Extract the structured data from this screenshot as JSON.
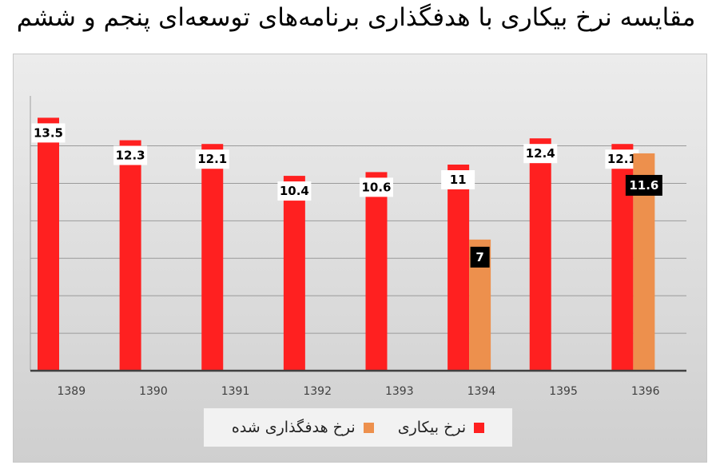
{
  "title": "مقایسه نرخ بیکاری با هدفگذاری برنامه‌های توسعه‌ای پنجم و ششم",
  "chart_data": {
    "type": "bar",
    "categories": [
      "1389",
      "1390",
      "1391",
      "1392",
      "1393",
      "1394",
      "1395",
      "1396"
    ],
    "series": [
      {
        "name": "نرخ بیکاری",
        "color": "#ff2020",
        "values": [
          13.5,
          12.3,
          12.1,
          10.4,
          10.6,
          11,
          12.4,
          12.1
        ]
      },
      {
        "name": "نرخ هدفگذاری شده",
        "color": "#ed904d",
        "values": [
          null,
          null,
          null,
          null,
          null,
          7,
          null,
          11.6
        ]
      }
    ],
    "ylim": [
      0,
      14
    ],
    "grid": true,
    "legend_position": "bottom"
  }
}
